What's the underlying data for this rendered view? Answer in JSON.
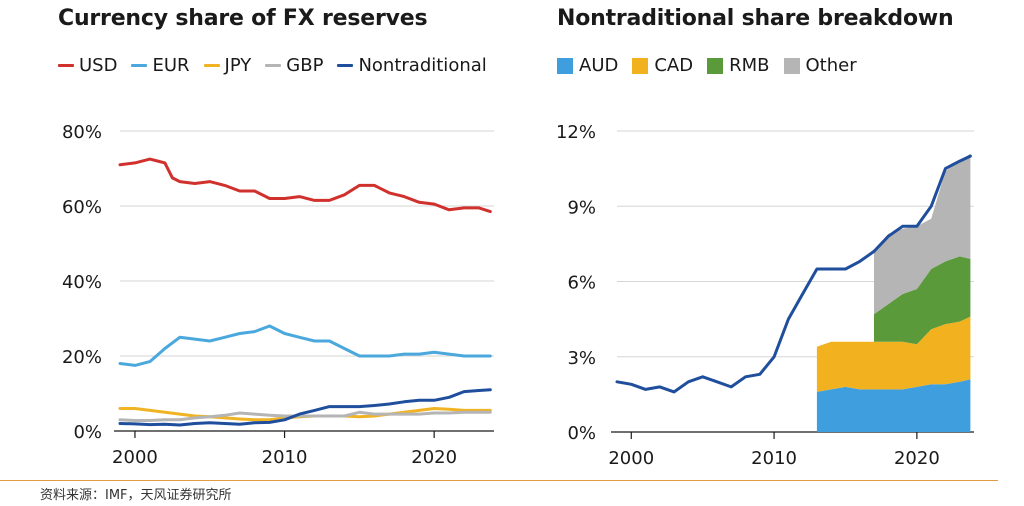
{
  "source_note": "资料来源：IMF，天风证券研究所",
  "chart_data": [
    {
      "type": "line",
      "title": "Currency share of FX reserves",
      "xlabel": "",
      "ylabel": "",
      "xlim": [
        1999,
        2024
      ],
      "ylim": [
        0,
        80
      ],
      "x_ticks": [
        2000,
        2010,
        2020
      ],
      "x_tick_labels": [
        "2000",
        "2010",
        "2020"
      ],
      "y_ticks": [
        0,
        20,
        40,
        60,
        80
      ],
      "y_tick_labels": [
        "0%",
        "20%",
        "40%",
        "60%",
        "80%"
      ],
      "grid": "horizontal",
      "legend_position": "top",
      "series": [
        {
          "name": "USD",
          "color": "#d0312d",
          "x": [
            1999.0,
            2000.0,
            2001.0,
            2001.5,
            2002.0,
            2002.5,
            2003.0,
            2004.0,
            2005.0,
            2006.0,
            2007.0,
            2008.0,
            2009.0,
            2010.0,
            2011.0,
            2012.0,
            2013.0,
            2014.0,
            2015.0,
            2016.0,
            2017.0,
            2018.0,
            2019.0,
            2020.0,
            2021.0,
            2022.0,
            2023.0,
            2023.75
          ],
          "values": [
            71.0,
            71.5,
            72.5,
            72.0,
            71.5,
            67.5,
            66.5,
            66.0,
            66.5,
            65.5,
            64.0,
            64.0,
            62.0,
            62.0,
            62.5,
            61.5,
            61.5,
            63.0,
            65.5,
            65.5,
            63.5,
            62.5,
            61.0,
            60.5,
            59.0,
            59.5,
            59.5,
            58.5
          ]
        },
        {
          "name": "EUR",
          "color": "#4aa8dd",
          "x": [
            1999.0,
            2000.0,
            2001.0,
            2002.0,
            2003.0,
            2004.0,
            2005.0,
            2006.0,
            2007.0,
            2008.0,
            2009.0,
            2010.0,
            2011.0,
            2012.0,
            2013.0,
            2014.0,
            2015.0,
            2016.0,
            2017.0,
            2018.0,
            2019.0,
            2020.0,
            2021.0,
            2022.0,
            2023.0,
            2023.75
          ],
          "values": [
            18.0,
            17.5,
            18.5,
            22.0,
            25.0,
            24.5,
            24.0,
            25.0,
            26.0,
            26.5,
            28.0,
            26.0,
            25.0,
            24.0,
            24.0,
            22.0,
            20.0,
            20.0,
            20.0,
            20.5,
            20.5,
            21.0,
            20.5,
            20.0,
            20.0,
            20.0
          ]
        },
        {
          "name": "JPY",
          "color": "#f0b323",
          "x": [
            1999.0,
            2000.0,
            2001.0,
            2002.0,
            2003.0,
            2004.0,
            2005.0,
            2006.0,
            2007.0,
            2008.0,
            2009.0,
            2010.0,
            2011.0,
            2012.0,
            2013.0,
            2014.0,
            2015.0,
            2016.0,
            2017.0,
            2018.0,
            2019.0,
            2020.0,
            2021.0,
            2022.0,
            2023.0,
            2023.75
          ],
          "values": [
            6.0,
            6.0,
            5.5,
            5.0,
            4.5,
            4.0,
            3.8,
            3.5,
            3.2,
            3.0,
            3.0,
            3.5,
            3.8,
            4.0,
            4.0,
            4.0,
            3.8,
            4.0,
            4.5,
            5.0,
            5.5,
            6.0,
            5.8,
            5.5,
            5.5,
            5.5
          ]
        },
        {
          "name": "GBP",
          "color": "#b5b5b5",
          "x": [
            1999.0,
            2000.0,
            2001.0,
            2002.0,
            2003.0,
            2004.0,
            2005.0,
            2006.0,
            2007.0,
            2008.0,
            2009.0,
            2010.0,
            2011.0,
            2012.0,
            2013.0,
            2014.0,
            2015.0,
            2016.0,
            2017.0,
            2018.0,
            2019.0,
            2020.0,
            2021.0,
            2022.0,
            2023.0,
            2023.75
          ],
          "values": [
            3.0,
            2.8,
            2.8,
            3.0,
            3.0,
            3.5,
            3.8,
            4.2,
            4.8,
            4.5,
            4.2,
            4.0,
            4.0,
            4.0,
            4.0,
            4.0,
            5.0,
            4.5,
            4.5,
            4.5,
            4.5,
            4.8,
            4.8,
            5.0,
            5.0,
            5.0
          ]
        },
        {
          "name": "Nontraditional",
          "color": "#1f4e9c",
          "x": [
            1999.0,
            2000.0,
            2001.0,
            2002.0,
            2003.0,
            2004.0,
            2005.0,
            2006.0,
            2007.0,
            2008.0,
            2009.0,
            2010.0,
            2011.0,
            2012.0,
            2013.0,
            2014.0,
            2015.0,
            2016.0,
            2017.0,
            2018.0,
            2019.0,
            2020.0,
            2021.0,
            2022.0,
            2023.0,
            2023.75
          ],
          "values": [
            2.0,
            1.9,
            1.7,
            1.8,
            1.6,
            2.0,
            2.2,
            2.0,
            1.8,
            2.2,
            2.3,
            3.0,
            4.5,
            5.5,
            6.5,
            6.5,
            6.5,
            6.8,
            7.2,
            7.8,
            8.2,
            8.2,
            9.0,
            10.5,
            10.8,
            11.0
          ]
        }
      ]
    },
    {
      "type": "area",
      "title": "Nontraditional share breakdown",
      "xlabel": "",
      "ylabel": "",
      "xlim": [
        1999,
        2024
      ],
      "ylim": [
        0,
        12
      ],
      "x_ticks": [
        2000,
        2010,
        2020
      ],
      "x_tick_labels": [
        "2000",
        "2010",
        "2020"
      ],
      "y_ticks": [
        0,
        3,
        6,
        9,
        12
      ],
      "y_tick_labels": [
        "0%",
        "3%",
        "6%",
        "9%",
        "12%"
      ],
      "grid": "horizontal",
      "legend_position": "top",
      "stacked_areas": {
        "x": [
          2013.0,
          2014.0,
          2015.0,
          2016.0,
          2016.75,
          2017.0,
          2018.0,
          2019.0,
          2020.0,
          2021.0,
          2022.0,
          2023.0,
          2023.75
        ],
        "series": [
          {
            "name": "AUD",
            "color": "#3f9fde",
            "values": [
              1.6,
              1.7,
              1.8,
              1.7,
              1.7,
              1.7,
              1.7,
              1.7,
              1.8,
              1.9,
              1.9,
              2.0,
              2.1
            ]
          },
          {
            "name": "CAD",
            "color": "#f2b11f",
            "values": [
              1.8,
              1.9,
              1.8,
              1.9,
              1.9,
              1.9,
              1.9,
              1.9,
              1.7,
              2.2,
              2.4,
              2.4,
              2.5
            ]
          },
          {
            "name": "RMB",
            "color": "#5b9a3a",
            "values": [
              0.0,
              0.0,
              0.0,
              0.0,
              0.0,
              1.1,
              1.5,
              1.9,
              2.2,
              2.4,
              2.5,
              2.6,
              2.3
            ]
          },
          {
            "name": "Other",
            "color": "#b5b5b5",
            "values": [
              0.0,
              0.0,
              0.0,
              0.0,
              0.0,
              2.5,
              2.8,
              2.6,
              2.5,
              2.0,
              3.6,
              3.8,
              4.2
            ]
          }
        ]
      },
      "line": {
        "name": "Nontraditional total",
        "color": "#1f4e9c",
        "x": [
          1999.0,
          2000.0,
          2001.0,
          2002.0,
          2003.0,
          2004.0,
          2005.0,
          2006.0,
          2007.0,
          2008.0,
          2009.0,
          2010.0,
          2011.0,
          2012.0,
          2013.0,
          2014.0,
          2015.0,
          2016.0,
          2017.0,
          2018.0,
          2019.0,
          2020.0,
          2021.0,
          2022.0,
          2023.0,
          2023.75
        ],
        "values": [
          2.0,
          1.9,
          1.7,
          1.8,
          1.6,
          2.0,
          2.2,
          2.0,
          1.8,
          2.2,
          2.3,
          3.0,
          4.5,
          5.5,
          6.5,
          6.5,
          6.5,
          6.8,
          7.2,
          7.8,
          8.2,
          8.2,
          9.0,
          10.5,
          10.8,
          11.0
        ]
      }
    }
  ]
}
